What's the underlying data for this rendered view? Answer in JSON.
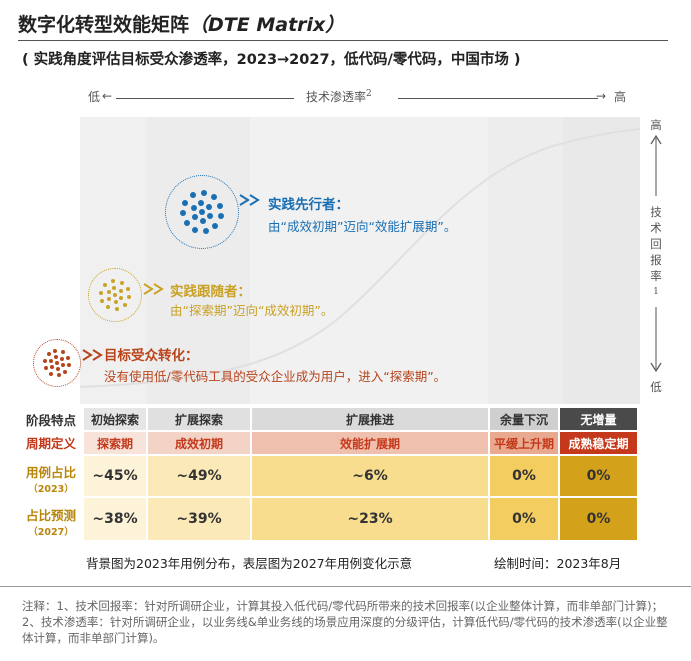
{
  "title": {
    "main": "数字化转型效能矩阵",
    "en": "（DTE Matrix）"
  },
  "subtitle": "( 实践角度评估目标受众渗透率，2023→2027，低代码/零代码，中国市场 )",
  "axis_x": {
    "low": "低",
    "high": "高",
    "label": "技术渗透率",
    "sup": "2"
  },
  "axis_y": {
    "high": "高",
    "low": "低",
    "label_chars": [
      "技",
      "术",
      "回",
      "报",
      "率"
    ],
    "sup": "1"
  },
  "groups": [
    {
      "title": "实践先行者：",
      "desc": "由“成效初期”迈向“效能扩展期”。",
      "color": "#1a6fb3"
    },
    {
      "title": "实践跟随者：",
      "desc": "由“探索期”迈向“成效初期”。",
      "color": "#c9a227"
    },
    {
      "title": "目标受众转化：",
      "desc": "没有使用低/零代码工具的受众企业成为用户，进入“探索期”。",
      "color": "#b8441c"
    }
  ],
  "table": {
    "row_headers": {
      "stage": "阶段特点",
      "period": "周期定义",
      "share": "用例占比",
      "share_year": "（2023）",
      "forecast": "占比预测",
      "forecast_year": "（2027）"
    },
    "stages": [
      "初始探索",
      "扩展探索",
      "扩展推进",
      "余量下沉",
      "无增量"
    ],
    "periods": [
      "探索期",
      "成效初期",
      "效能扩展期",
      "平缓上升期",
      "成熟稳定期"
    ],
    "share_2023": [
      "~45%",
      "~49%",
      "~6%",
      "0%",
      "0%"
    ],
    "share_2027": [
      "~38%",
      "~39%",
      "~23%",
      "0%",
      "0%"
    ]
  },
  "notes": {
    "background": "背景图为2023年用例分布，表层图为2027年用例变化示意",
    "date": "绘制时间：2023年8月",
    "footnote": "注释：1、技术回报率：针对所调研企业，计算其投入低代码/零代码所带来的技术回报率(以企业整体计算，而非单部门计算)；2、技术渗透率：针对所调研企业，以业务线&单业务线的场景应用深度的分级评估，计算低代码/零代码的技术渗透率(以企业整体计算，而非单部门计算)。"
  },
  "colors": {
    "blue": "#1a6fb3",
    "gold": "#c9a227",
    "rust": "#b8441c",
    "stage_bg": "#e6e6e6",
    "stage_dark": "#4a4a4a",
    "period_bg": "#f4cfc2",
    "period_dark": "#c4391b"
  }
}
